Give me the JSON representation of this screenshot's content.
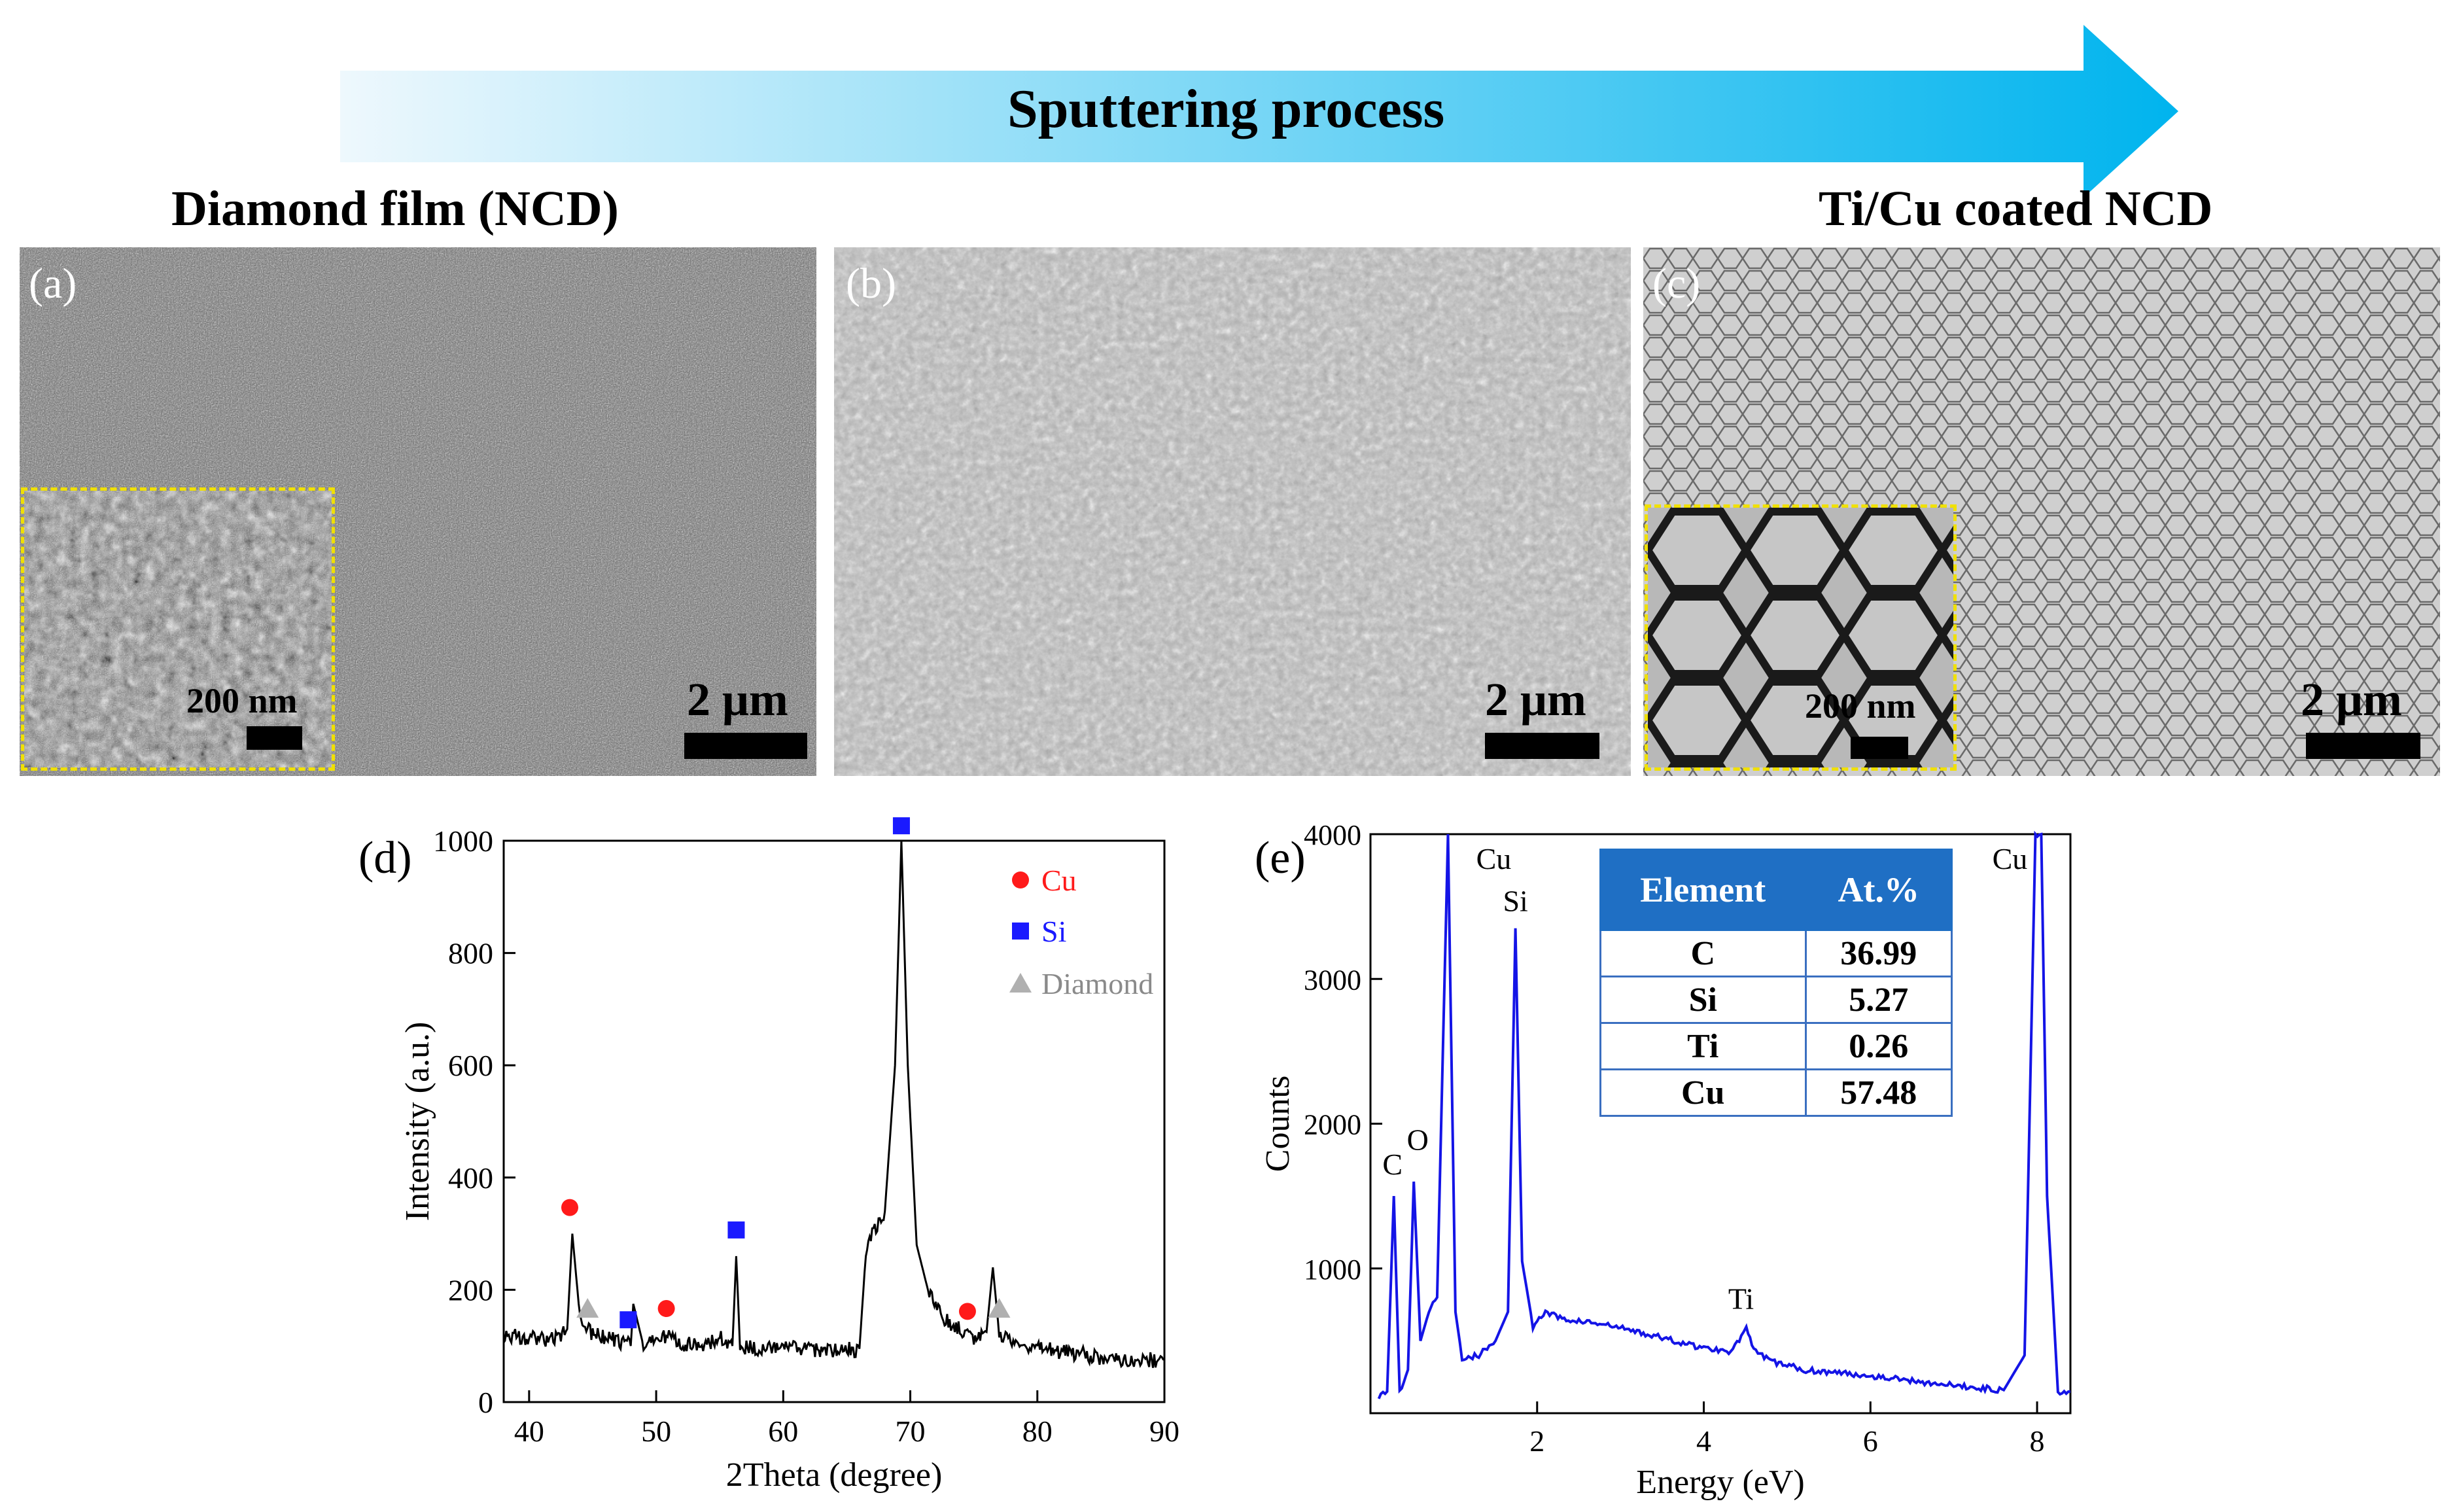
{
  "header": {
    "process_label": "Sputtering process",
    "left_title": "Diamond film (NCD)",
    "right_title": "Ti/Cu coated NCD",
    "arrow_colors": [
      "#eaf6fc",
      "#00b4ee"
    ]
  },
  "panels": [
    {
      "label": "(a)",
      "scale_label": "2 μm",
      "inset_scale_label": "200 nm"
    },
    {
      "label": "(b)",
      "scale_label": "2 μm"
    },
    {
      "label": "(c)",
      "scale_label": "2 μm",
      "inset_scale_label": "200 nm"
    }
  ],
  "xrd": {
    "label": "(d)",
    "xlabel": "2Theta (degree)",
    "ylabel": "Intensity (a.u.)",
    "legend": [
      {
        "name": "Cu",
        "color": "#ff1a1a",
        "marker": "circle"
      },
      {
        "name": "Si",
        "color": "#1a1aff",
        "marker": "square"
      },
      {
        "name": "Diamond",
        "color": "#b0b0b0",
        "marker": "triangle"
      }
    ],
    "x_ticks": [
      "40",
      "50",
      "60",
      "70",
      "80",
      "90"
    ],
    "y_ticks": [
      "0",
      "200",
      "400",
      "600",
      "800",
      "1000"
    ]
  },
  "eds": {
    "label": "(e)",
    "xlabel": "Energy (eV)",
    "ylabel": "Counts",
    "x_ticks": [
      "2",
      "4",
      "6",
      "8"
    ],
    "y_ticks": [
      "1000",
      "2000",
      "3000",
      "4000"
    ],
    "peak_labels": [
      "C",
      "O",
      "Cu",
      "Si",
      "Ti",
      "Cu"
    ],
    "table": {
      "headers": [
        "Element",
        "At.%"
      ],
      "rows": [
        [
          "C",
          "36.99"
        ],
        [
          "Si",
          "5.27"
        ],
        [
          "Ti",
          "0.26"
        ],
        [
          "Cu",
          "57.48"
        ]
      ]
    }
  },
  "chart_data": [
    {
      "type": "line",
      "title": "(d)",
      "xlabel": "2Theta (degree)",
      "ylabel": "Intensity (a.u.)",
      "xlim": [
        38,
        90
      ],
      "ylim": [
        0,
        1000
      ],
      "series": [
        {
          "name": "XRD pattern",
          "x": [
            38,
            40,
            42,
            43,
            43.4,
            44,
            45,
            46,
            47,
            48,
            48.2,
            49,
            50.5,
            52,
            54,
            55,
            56,
            56.3,
            56.6,
            58,
            60,
            62,
            64,
            66,
            66.5,
            66.8,
            67,
            68,
            68.8,
            69.3,
            69.8,
            70.5,
            71.5,
            73,
            75,
            76,
            76.5,
            77,
            78,
            80,
            82,
            85,
            88,
            90
          ],
          "y": [
            120,
            115,
            110,
            130,
            300,
            150,
            120,
            115,
            110,
            100,
            175,
            100,
            120,
            105,
            100,
            115,
            100,
            260,
            100,
            95,
            95,
            95,
            90,
            95,
            265,
            290,
            300,
            340,
            600,
            1000,
            600,
            280,
            190,
            140,
            115,
            125,
            240,
            120,
            110,
            95,
            90,
            80,
            75,
            75
          ]
        }
      ],
      "markers": [
        {
          "phase": "Cu",
          "x": [
            43.2,
            50.8,
            74.5
          ]
        },
        {
          "phase": "Si",
          "x": [
            47.8,
            56.3,
            69.3
          ]
        },
        {
          "phase": "Diamond",
          "x": [
            44.6,
            77.0
          ]
        }
      ]
    },
    {
      "type": "line",
      "title": "(e)",
      "xlabel": "Energy (eV)",
      "ylabel": "Counts",
      "xlim": [
        0,
        8.4
      ],
      "ylim": [
        0,
        4000
      ],
      "series": [
        {
          "name": "EDS spectrum",
          "x": [
            0.1,
            0.2,
            0.28,
            0.35,
            0.45,
            0.52,
            0.6,
            0.7,
            0.8,
            0.93,
            1.02,
            1.1,
            1.3,
            1.5,
            1.65,
            1.74,
            1.82,
            1.95,
            2.1,
            2.3,
            2.6,
            3.0,
            3.5,
            4.0,
            4.3,
            4.45,
            4.51,
            4.6,
            4.8,
            5.2,
            6.0,
            7.0,
            7.6,
            7.85,
            7.98,
            8.05,
            8.12,
            8.25,
            8.4
          ],
          "y": [
            120,
            150,
            1500,
            150,
            300,
            1600,
            500,
            700,
            800,
            4000,
            700,
            380,
            400,
            500,
            700,
            3350,
            1050,
            600,
            700,
            650,
            630,
            590,
            520,
            450,
            430,
            520,
            600,
            430,
            360,
            300,
            260,
            190,
            160,
            400,
            4000,
            4000,
            1500,
            150,
            150
          ]
        }
      ],
      "peak_annotations": [
        {
          "label": "C",
          "x": 0.28
        },
        {
          "label": "O",
          "x": 0.52
        },
        {
          "label": "Cu",
          "x": 0.93
        },
        {
          "label": "Si",
          "x": 1.74
        },
        {
          "label": "Ti",
          "x": 4.51
        },
        {
          "label": "Cu",
          "x": 8.05
        }
      ]
    }
  ]
}
